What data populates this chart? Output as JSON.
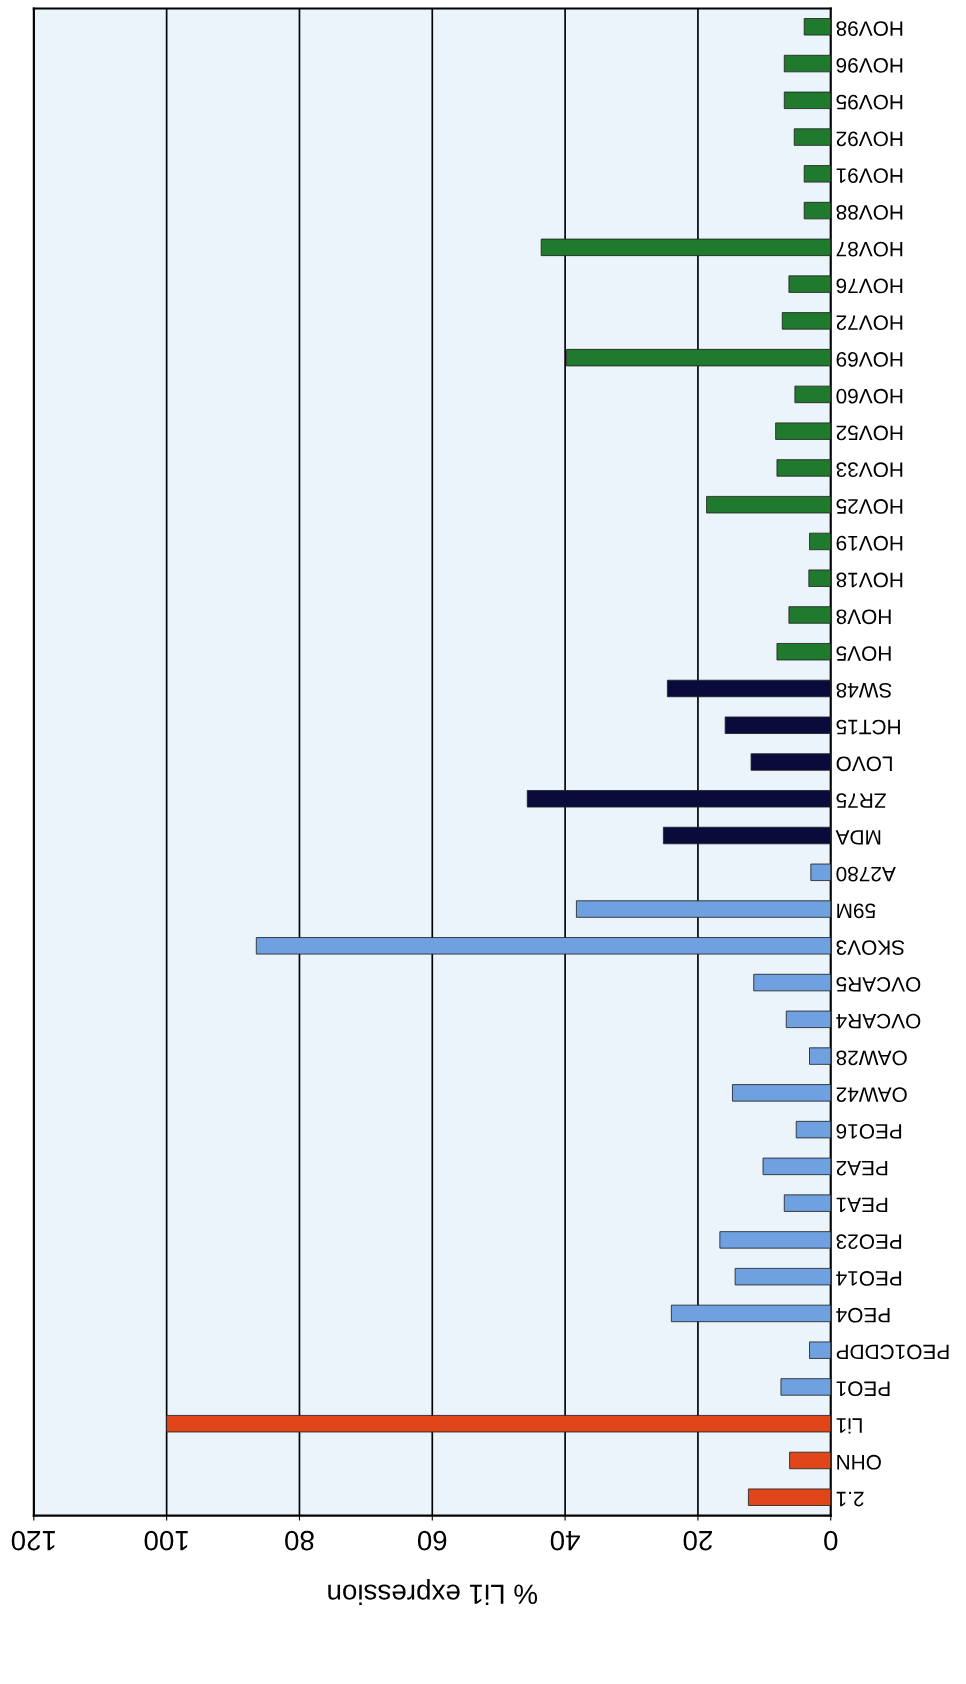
{
  "chart_data": {
    "type": "bar",
    "orientation": "horizontal",
    "xlabel": "% Li1 expression",
    "categories": [
      "HOV98",
      "HOV96",
      "HOV95",
      "HOV92",
      "HOV91",
      "HOV88",
      "HOV87",
      "HOV76",
      "HOV72",
      "HOV69",
      "HOV60",
      "HOV52",
      "HOV33",
      "HOV25",
      "HOV19",
      "HOV18",
      "HOV8",
      "HOV5",
      "SW48",
      "HCT15",
      "LOVO",
      "ZR75",
      "MDA",
      "A2780",
      "59M",
      "SKOV3",
      "OVCAR5",
      "OVCAR4",
      "OAW28",
      "OAW42",
      "PEO16",
      "PEA2",
      "PEA1",
      "PEO23",
      "PEO14",
      "PEO4",
      "PEO1CDDP",
      "PEO1",
      "Li1",
      "OHN",
      "2.1"
    ],
    "values": [
      4,
      7,
      7,
      5.5,
      4,
      4,
      43.6,
      6.3,
      7.3,
      39.8,
      5.4,
      8.3,
      8.1,
      18.7,
      3.2,
      3.3,
      6.3,
      8.1,
      24.6,
      15.9,
      12,
      45.7,
      25.2,
      3,
      38.3,
      86.5,
      11.6,
      6.7,
      3.2,
      14.8,
      5.2,
      10.2,
      7,
      16.7,
      14.4,
      24,
      3.2,
      7.5,
      100,
      6.2,
      12.4
    ],
    "colors": [
      "#1f7a2e",
      "#1f7a2e",
      "#1f7a2e",
      "#1f7a2e",
      "#1f7a2e",
      "#1f7a2e",
      "#1f7a2e",
      "#1f7a2e",
      "#1f7a2e",
      "#1f7a2e",
      "#1f7a2e",
      "#1f7a2e",
      "#1f7a2e",
      "#1f7a2e",
      "#1f7a2e",
      "#1f7a2e",
      "#1f7a2e",
      "#1f7a2e",
      "#0b0b3b",
      "#0b0b3b",
      "#0b0b3b",
      "#0b0b3b",
      "#0b0b3b",
      "#6fa0e0",
      "#6fa0e0",
      "#6fa0e0",
      "#6fa0e0",
      "#6fa0e0",
      "#6fa0e0",
      "#6fa0e0",
      "#6fa0e0",
      "#6fa0e0",
      "#6fa0e0",
      "#6fa0e0",
      "#6fa0e0",
      "#6fa0e0",
      "#6fa0e0",
      "#6fa0e0",
      "#e0461a",
      "#e0461a",
      "#e0461a"
    ],
    "xlim": [
      120,
      0
    ],
    "xticks": [
      0,
      20,
      40,
      60,
      80,
      100,
      120
    ],
    "grid": "x"
  }
}
